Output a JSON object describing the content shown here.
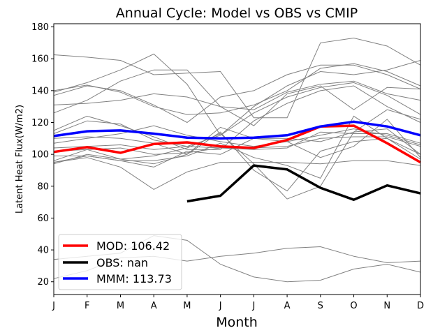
{
  "chart_data": {
    "type": "line",
    "title": "Annual Cycle: Model vs OBS vs CMIP",
    "xlabel": "Month",
    "ylabel": "Latent Heat Flux(W/m2)",
    "categories": [
      "J",
      "F",
      "M",
      "A",
      "M",
      "J",
      "J",
      "A",
      "S",
      "O",
      "N",
      "D"
    ],
    "ylim": [
      12,
      182
    ],
    "yticks": [
      20,
      40,
      60,
      80,
      100,
      120,
      140,
      160,
      180
    ],
    "legend_position": "lower-left",
    "colors": {
      "model": "#ff0000",
      "obs": "#000000",
      "mmm": "#0000ff",
      "cmip": "#808080"
    },
    "series": [
      {
        "name": "MOD",
        "label": "MOD: 106.42",
        "role": "model",
        "values": [
          101.5,
          104.5,
          101,
          106.5,
          107.5,
          105,
          104,
          109,
          117.5,
          118,
          107,
          95
        ]
      },
      {
        "name": "OBS",
        "label": "OBS: nan",
        "role": "obs",
        "values": [
          null,
          null,
          null,
          null,
          70.5,
          74,
          93,
          90.5,
          79,
          71.5,
          80.5,
          75.5
        ]
      },
      {
        "name": "MMM",
        "label": "MMM: 113.73",
        "role": "mmm",
        "values": [
          111.5,
          114.5,
          115,
          113,
          110.5,
          110,
          110.5,
          112,
          117.5,
          120.5,
          117.5,
          112
        ]
      }
    ],
    "cmip_members": [
      {
        "values": [
          162.5,
          161,
          159,
          150,
          151,
          152,
          123,
          123,
          170,
          173,
          168,
          156
        ]
      },
      {
        "values": [
          139,
          145,
          153,
          163,
          144,
          112,
          130,
          143,
          152,
          150,
          153,
          159
        ]
      },
      {
        "values": [
          140,
          143.5,
          139,
          130,
          125,
          126,
          131,
          140,
          154,
          157,
          152,
          143
        ]
      },
      {
        "values": [
          137,
          143,
          140,
          131,
          120,
          136,
          140,
          150,
          156,
          156,
          150,
          141
        ]
      },
      {
        "values": [
          131,
          132,
          134,
          138,
          136,
          130,
          128,
          139,
          144,
          146,
          138,
          134
        ]
      },
      {
        "values": [
          126,
          134,
          146,
          153,
          153,
          130,
          118,
          138,
          143,
          128,
          142,
          141
        ]
      },
      {
        "values": [
          113,
          121,
          119,
          109,
          105,
          112,
          126,
          136,
          142,
          145,
          137,
          125
        ]
      },
      {
        "values": [
          115,
          124,
          118,
          111,
          103,
          103,
          121,
          132,
          140,
          143,
          130,
          120
        ]
      },
      {
        "values": [
          110,
          111,
          110,
          107,
          100,
          117,
          110,
          110,
          108,
          114,
          128,
          122
        ]
      },
      {
        "values": [
          107,
          110,
          113,
          118,
          112,
          108,
          105,
          108,
          112,
          116,
          112,
          106
        ]
      },
      {
        "values": [
          104,
          105,
          106,
          103,
          105,
          104,
          103,
          104,
          114,
          113,
          113,
          107
        ]
      },
      {
        "values": [
          102,
          103,
          104,
          100,
          101,
          104,
          104,
          105,
          110,
          111,
          111,
          105
        ]
      },
      {
        "values": [
          99,
          99,
          96,
          96,
          99,
          107,
          98,
          93,
          85,
          124,
          110,
          100
        ]
      },
      {
        "values": [
          96,
          103,
          97,
          94,
          100,
          114,
          90,
          77,
          102,
          108,
          110,
          97
        ]
      },
      {
        "values": [
          95,
          99,
          96,
          92,
          102,
          100,
          110,
          108,
          98,
          105,
          122,
          98
        ]
      },
      {
        "values": [
          95,
          98,
          92,
          78,
          89,
          95,
          95,
          95,
          94,
          96,
          96,
          93
        ]
      },
      {
        "values": [
          94,
          100,
          97,
          99,
          104,
          113,
          94,
          72,
          80,
          114,
          116,
          100
        ]
      },
      {
        "values": [
          34,
          36,
          38,
          49,
          46,
          31,
          23,
          20,
          21,
          28,
          31,
          26
        ]
      },
      {
        "values": [
          22,
          27,
          35,
          36,
          33,
          36,
          38,
          41,
          42,
          36,
          32,
          33
        ]
      }
    ]
  }
}
